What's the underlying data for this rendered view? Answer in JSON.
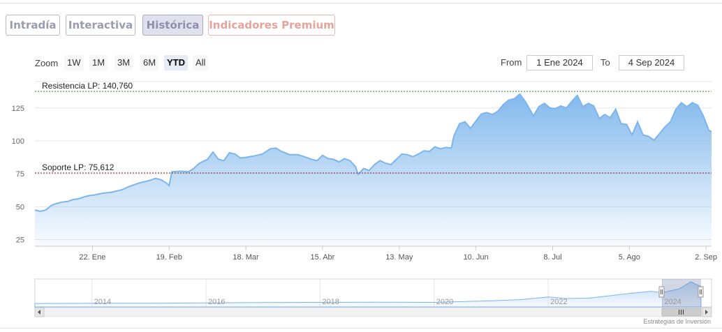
{
  "tabs": [
    {
      "label": "Intradía",
      "state": "normal"
    },
    {
      "label": "Interactiva",
      "state": "normal"
    },
    {
      "label": "Histórica",
      "state": "active"
    },
    {
      "label": "Indicadores Premium",
      "state": "premium"
    }
  ],
  "zoom": {
    "label": "Zoom",
    "buttons": [
      "1W",
      "1M",
      "3M",
      "6M",
      "YTD",
      "All"
    ],
    "selected": "YTD"
  },
  "range": {
    "from_label": "From",
    "from_value": "1 Ene 2024",
    "to_label": "To",
    "to_value": "4 Sep 2024"
  },
  "credits": "Estrategias de Inversión",
  "colors": {
    "line": "#7cb5ec",
    "area_top": "#7cb5ec",
    "area_bottom": "#ffffff",
    "resistance_line": "#2f7d2f",
    "support_line": "#8b1a1a",
    "tab_border": "#b8b8c4",
    "tab_active_bg": "#e1e1ee",
    "premium_text": "#e6a39b"
  },
  "chart_data": {
    "type": "area",
    "title": "",
    "xlabel": "",
    "ylabel": "",
    "ylim": [
      20,
      145
    ],
    "yticks": [
      25,
      50,
      75,
      100,
      125
    ],
    "grid": true,
    "xlim": [
      "2024-01-01",
      "2024-09-04"
    ],
    "x_ticks": [
      {
        "date": "2024-01-22",
        "label": "22. Ene"
      },
      {
        "date": "2024-02-19",
        "label": "19. Feb"
      },
      {
        "date": "2024-03-18",
        "label": "18. Mar"
      },
      {
        "date": "2024-04-15",
        "label": "15. Abr"
      },
      {
        "date": "2024-05-13",
        "label": "13. May"
      },
      {
        "date": "2024-06-10",
        "label": "10. Jun"
      },
      {
        "date": "2024-07-08",
        "label": "8. Jul"
      },
      {
        "date": "2024-08-05",
        "label": "5. Ago"
      },
      {
        "date": "2024-09-02",
        "label": "2. Sep"
      }
    ],
    "series": [
      {
        "values": [
          [
            "2024-01-01",
            47.5
          ],
          [
            "2024-01-03",
            46.5
          ],
          [
            "2024-01-05",
            47.5
          ],
          [
            "2024-01-07",
            51.0
          ],
          [
            "2024-01-09",
            52.5
          ],
          [
            "2024-01-11",
            53.5
          ],
          [
            "2024-01-13",
            54.0
          ],
          [
            "2024-01-15",
            55.5
          ],
          [
            "2024-01-17",
            56.0
          ],
          [
            "2024-01-19",
            57.5
          ],
          [
            "2024-01-21",
            58.5
          ],
          [
            "2024-01-23",
            59.0
          ],
          [
            "2024-01-25",
            60.0
          ],
          [
            "2024-01-27",
            60.5
          ],
          [
            "2024-01-29",
            61.0
          ],
          [
            "2024-01-31",
            62.0
          ],
          [
            "2024-02-02",
            63.0
          ],
          [
            "2024-02-04",
            65.0
          ],
          [
            "2024-02-06",
            66.5
          ],
          [
            "2024-02-08",
            68.0
          ],
          [
            "2024-02-10",
            69.0
          ],
          [
            "2024-02-12",
            70.0
          ],
          [
            "2024-02-14",
            71.5
          ],
          [
            "2024-02-16",
            70.5
          ],
          [
            "2024-02-18",
            68.0
          ],
          [
            "2024-02-19",
            66.0
          ],
          [
            "2024-02-20",
            76.5
          ],
          [
            "2024-02-23",
            77.0
          ],
          [
            "2024-02-26",
            76.5
          ],
          [
            "2024-02-28",
            79.0
          ],
          [
            "2024-03-01",
            83.0
          ],
          [
            "2024-03-04",
            86.0
          ],
          [
            "2024-03-06",
            91.5
          ],
          [
            "2024-03-08",
            86.0
          ],
          [
            "2024-03-10",
            85.0
          ],
          [
            "2024-03-12",
            91.0
          ],
          [
            "2024-03-14",
            90.0
          ],
          [
            "2024-03-16",
            87.0
          ],
          [
            "2024-03-18",
            87.5
          ],
          [
            "2024-03-21",
            88.5
          ],
          [
            "2024-03-24",
            90.0
          ],
          [
            "2024-03-27",
            94.0
          ],
          [
            "2024-03-29",
            94.5
          ],
          [
            "2024-03-31",
            92.0
          ],
          [
            "2024-04-03",
            89.5
          ],
          [
            "2024-04-06",
            89.5
          ],
          [
            "2024-04-09",
            87.5
          ],
          [
            "2024-04-11",
            86.0
          ],
          [
            "2024-04-13",
            85.0
          ],
          [
            "2024-04-15",
            89.0
          ],
          [
            "2024-04-17",
            86.5
          ],
          [
            "2024-04-19",
            86.0
          ],
          [
            "2024-04-21",
            84.0
          ],
          [
            "2024-04-23",
            86.5
          ],
          [
            "2024-04-25",
            85.0
          ],
          [
            "2024-04-27",
            80.5
          ],
          [
            "2024-04-28",
            74.5
          ],
          [
            "2024-04-30",
            79.0
          ],
          [
            "2024-05-02",
            77.5
          ],
          [
            "2024-05-04",
            82.0
          ],
          [
            "2024-05-06",
            85.0
          ],
          [
            "2024-05-08",
            83.0
          ],
          [
            "2024-05-10",
            82.0
          ],
          [
            "2024-05-12",
            86.0
          ],
          [
            "2024-05-14",
            90.0
          ],
          [
            "2024-05-16",
            89.5
          ],
          [
            "2024-05-18",
            88.0
          ],
          [
            "2024-05-20",
            90.0
          ],
          [
            "2024-05-22",
            92.5
          ],
          [
            "2024-05-24",
            92.0
          ],
          [
            "2024-05-26",
            95.5
          ],
          [
            "2024-05-28",
            94.0
          ],
          [
            "2024-05-30",
            95.0
          ],
          [
            "2024-06-01",
            94.5
          ],
          [
            "2024-06-02",
            104.0
          ],
          [
            "2024-06-04",
            113.0
          ],
          [
            "2024-06-06",
            114.5
          ],
          [
            "2024-06-08",
            109.5
          ],
          [
            "2024-06-10",
            115.0
          ],
          [
            "2024-06-12",
            120.5
          ],
          [
            "2024-06-14",
            121.5
          ],
          [
            "2024-06-16",
            120.0
          ],
          [
            "2024-06-18",
            122.5
          ],
          [
            "2024-06-20",
            127.5
          ],
          [
            "2024-06-22",
            131.0
          ],
          [
            "2024-06-24",
            132.0
          ],
          [
            "2024-06-26",
            135.5
          ],
          [
            "2024-06-28",
            130.0
          ],
          [
            "2024-07-01",
            119.0
          ],
          [
            "2024-07-03",
            126.0
          ],
          [
            "2024-07-05",
            128.5
          ],
          [
            "2024-07-07",
            125.0
          ],
          [
            "2024-07-09",
            124.5
          ],
          [
            "2024-07-11",
            126.5
          ],
          [
            "2024-07-13",
            125.0
          ],
          [
            "2024-07-15",
            130.0
          ],
          [
            "2024-07-17",
            134.5
          ],
          [
            "2024-07-19",
            126.0
          ],
          [
            "2024-07-21",
            128.5
          ],
          [
            "2024-07-23",
            126.5
          ],
          [
            "2024-07-25",
            117.0
          ],
          [
            "2024-07-27",
            120.0
          ],
          [
            "2024-07-29",
            117.5
          ],
          [
            "2024-07-31",
            124.0
          ],
          [
            "2024-08-02",
            113.0
          ],
          [
            "2024-08-04",
            112.5
          ],
          [
            "2024-08-06",
            104.5
          ],
          [
            "2024-08-08",
            114.5
          ],
          [
            "2024-08-10",
            104.5
          ],
          [
            "2024-08-12",
            103.5
          ],
          [
            "2024-08-14",
            100.5
          ],
          [
            "2024-08-16",
            105.5
          ],
          [
            "2024-08-18",
            110.5
          ],
          [
            "2024-08-20",
            114.5
          ],
          [
            "2024-08-22",
            124.0
          ],
          [
            "2024-08-24",
            129.0
          ],
          [
            "2024-08-26",
            126.0
          ],
          [
            "2024-08-28",
            129.0
          ],
          [
            "2024-08-30",
            127.0
          ],
          [
            "2024-09-01",
            119.0
          ],
          [
            "2024-09-03",
            108.0
          ],
          [
            "2024-09-04",
            107.0
          ]
        ]
      }
    ],
    "plot_lines": [
      {
        "label": "Resistencia LP: 140,760",
        "value": 140.76,
        "style": "dashed",
        "color": "#2f7d2f"
      },
      {
        "label": "Soporte LP: 75,612",
        "value": 75.612,
        "style": "dashed",
        "color": "#8b1a1a"
      }
    ],
    "navigator": {
      "year_labels": [
        "2014",
        "2016",
        "2018",
        "2020",
        "2022",
        "2024"
      ],
      "series": [
        [
          2013.0,
          18
        ],
        [
          2014.0,
          19
        ],
        [
          2015.0,
          19.5
        ],
        [
          2016.0,
          21
        ],
        [
          2017.0,
          23
        ],
        [
          2018.0,
          24
        ],
        [
          2019.0,
          24.5
        ],
        [
          2020.0,
          24
        ],
        [
          2020.5,
          28
        ],
        [
          2021.0,
          32
        ],
        [
          2021.5,
          38
        ],
        [
          2022.0,
          52
        ],
        [
          2022.3,
          44
        ],
        [
          2022.7,
          46
        ],
        [
          2023.0,
          56
        ],
        [
          2023.4,
          70
        ],
        [
          2023.8,
          82
        ],
        [
          2024.0,
          75
        ],
        [
          2024.3,
          95
        ],
        [
          2024.5,
          132
        ],
        [
          2024.6,
          118
        ],
        [
          2024.68,
          107
        ]
      ],
      "x_start": 2013.0,
      "x_end": 2024.68
    }
  }
}
